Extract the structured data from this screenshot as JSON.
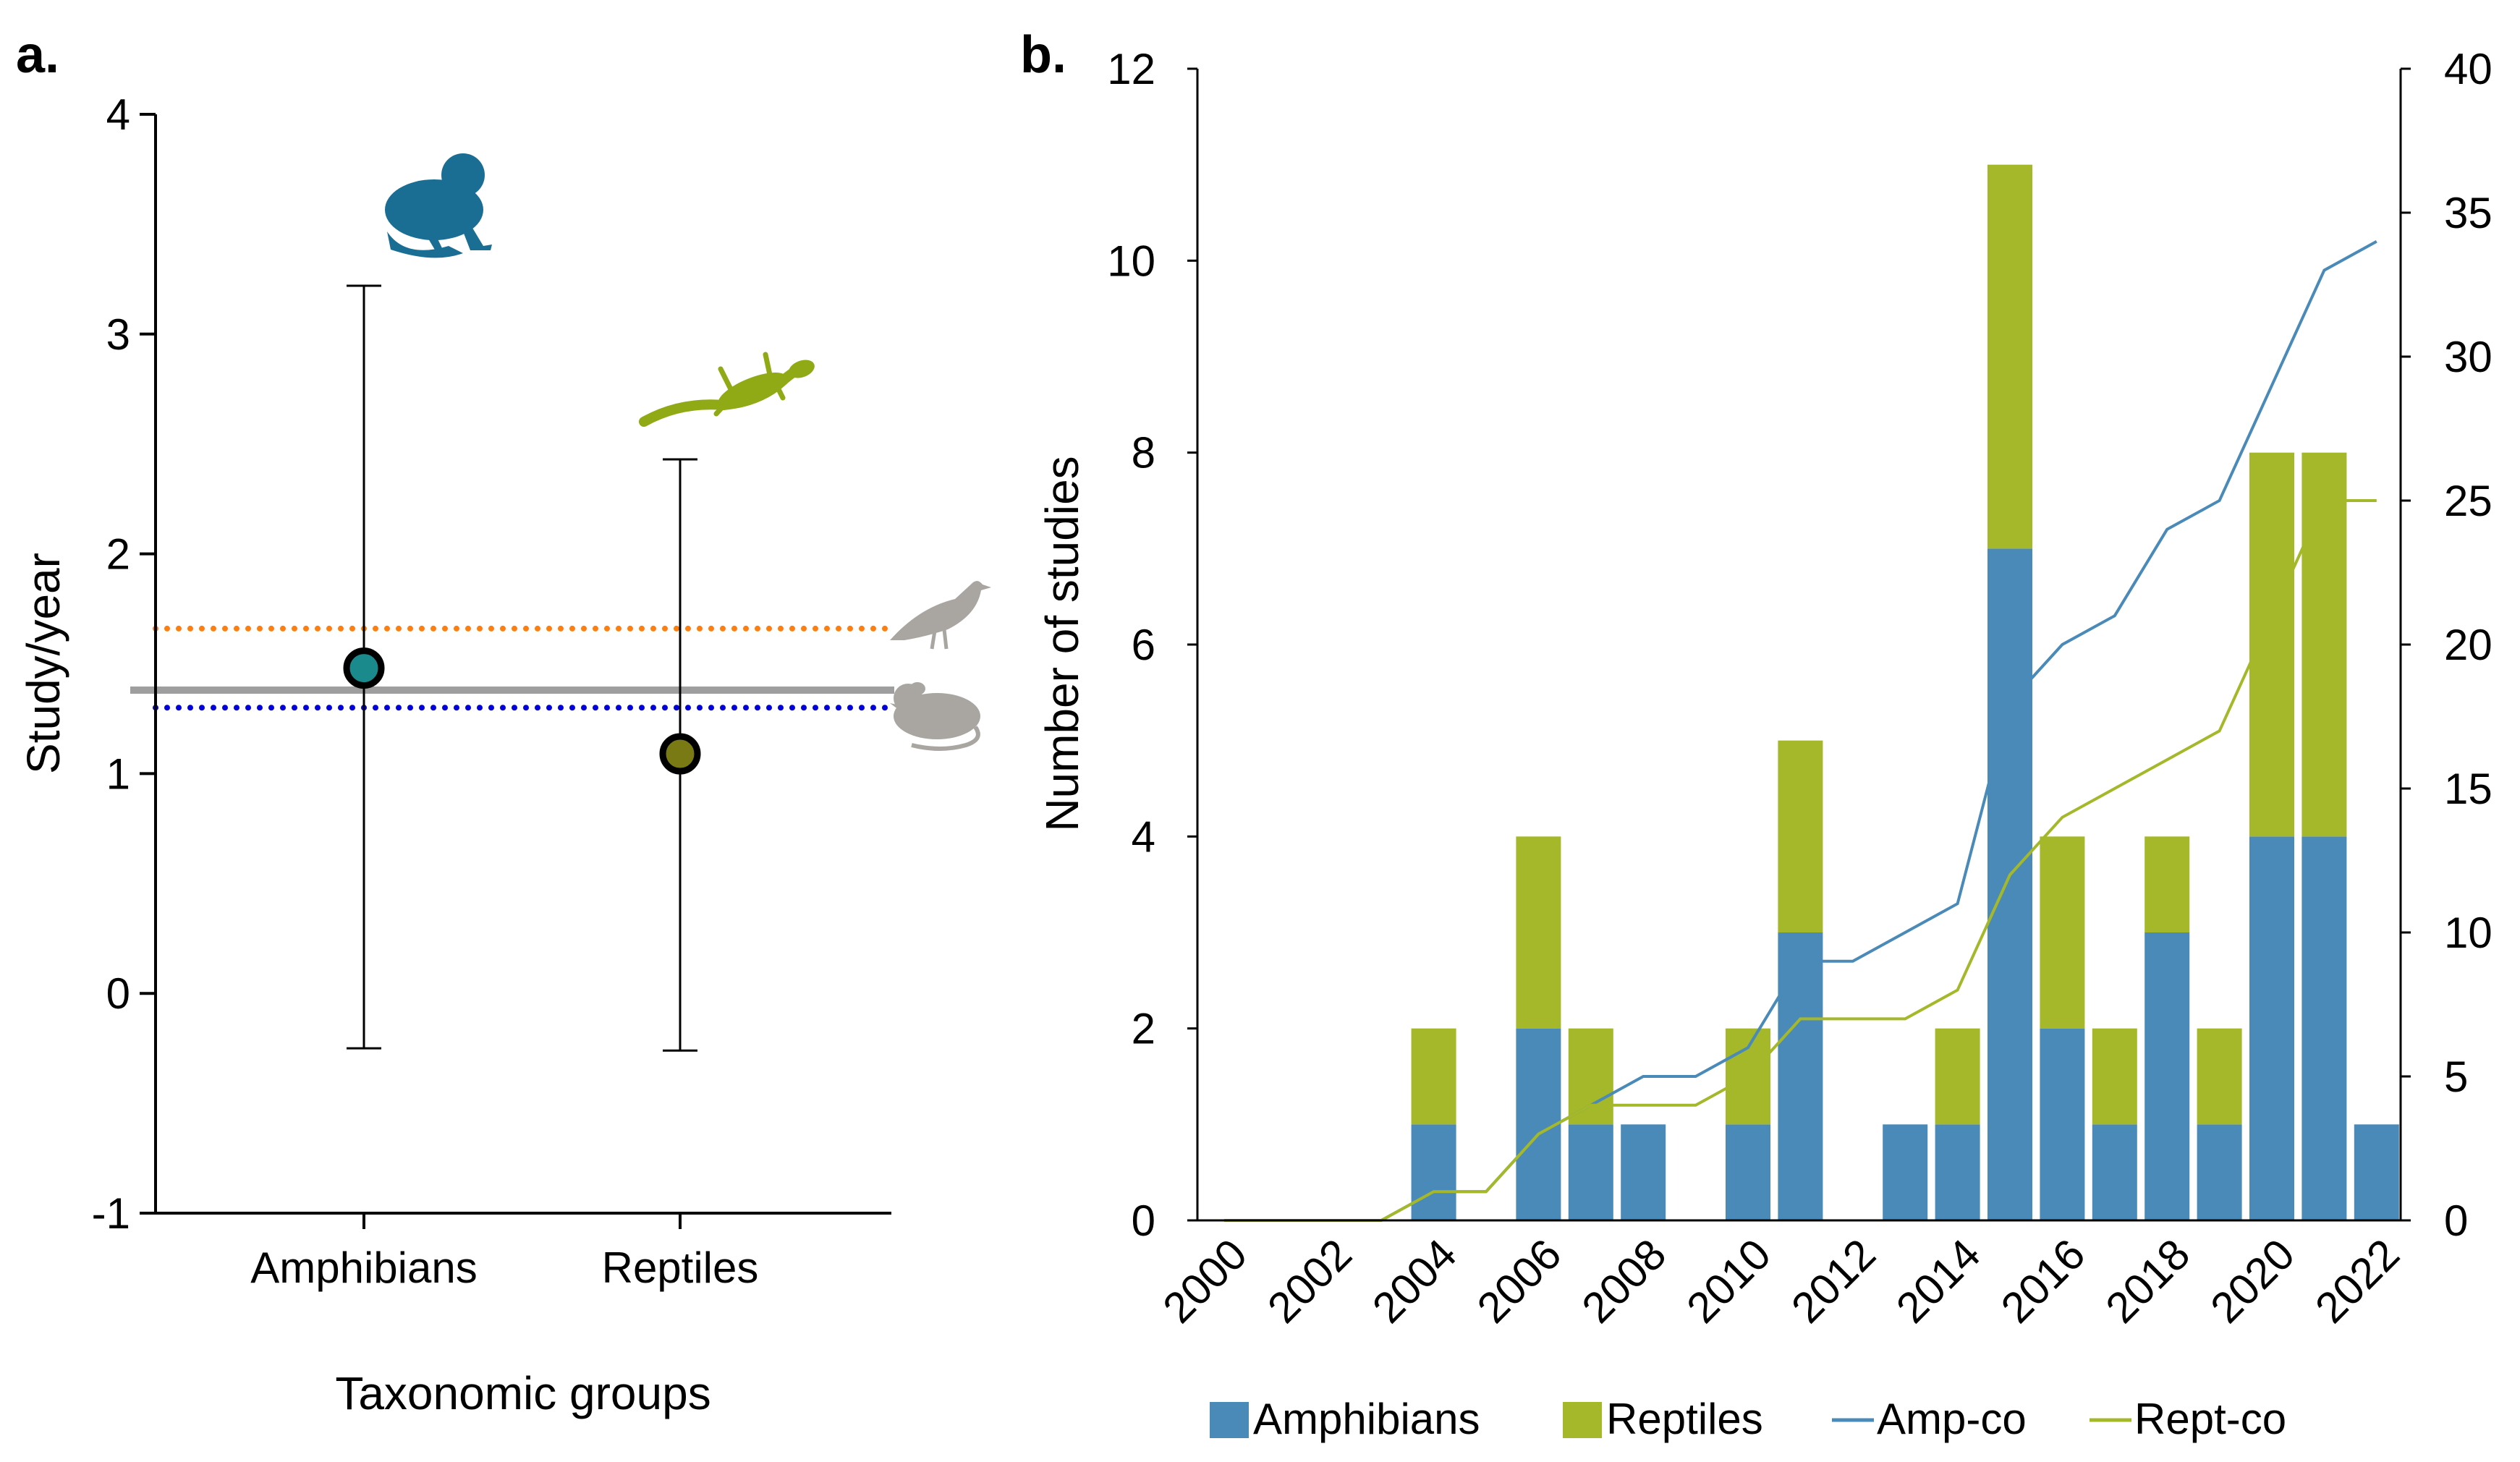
{
  "chart_data": [
    {
      "panel": "a.",
      "type": "scatter",
      "xlabel": "Taxonomic groups",
      "ylabel": "Study/year",
      "ylim": [
        -1,
        4
      ],
      "yticks": [
        "4",
        "3",
        "2",
        "1",
        "0",
        "-1"
      ],
      "categories": [
        "Amphibians",
        "Reptiles"
      ],
      "points": [
        {
          "name": "Amphibians",
          "mean": 1.48,
          "ci_low": -0.25,
          "ci_high": 3.22,
          "color": "#1a8a8c"
        },
        {
          "name": "Reptiles",
          "mean": 1.09,
          "ci_low": -0.26,
          "ci_high": 2.43,
          "color": "#7a7a14"
        }
      ],
      "reference_lines": [
        {
          "name": "birds",
          "value": 1.66,
          "color": "#ff7f0e",
          "style": "dotted",
          "icon": "bird-icon"
        },
        {
          "name": "overall",
          "value": 1.38,
          "color": "#9e9e9e",
          "style": "solid",
          "icon": ""
        },
        {
          "name": "mammals",
          "value": 1.3,
          "color": "#0000dd",
          "style": "dotted",
          "icon": "rodent-icon"
        }
      ],
      "icons": [
        {
          "name": "frog-icon",
          "color": "#1a6e94"
        },
        {
          "name": "lizard-icon",
          "color": "#8faa15"
        }
      ]
    },
    {
      "panel": "b.",
      "type": "bar",
      "stacked": true,
      "ylabel": "Number of studies",
      "ylim": [
        0,
        12
      ],
      "yticks": [
        "0",
        "2",
        "4",
        "6",
        "8",
        "10",
        "12"
      ],
      "y2lim": [
        0,
        40
      ],
      "y2ticks": [
        "0",
        "5",
        "10",
        "15",
        "20",
        "25",
        "30",
        "35",
        "40"
      ],
      "years": [
        2000,
        2001,
        2002,
        2003,
        2004,
        2005,
        2006,
        2007,
        2008,
        2009,
        2010,
        2011,
        2012,
        2013,
        2014,
        2015,
        2016,
        2017,
        2018,
        2019,
        2020,
        2021,
        2022
      ],
      "xticks": [
        "2000",
        "2002",
        "2004",
        "2006",
        "2008",
        "2010",
        "2012",
        "2014",
        "2016",
        "2018",
        "2020",
        "2022"
      ],
      "series": [
        {
          "name": "Amphibians",
          "kind": "bar",
          "color": "#4a8ab8",
          "values": [
            0,
            0,
            0,
            0,
            1,
            0,
            2,
            1,
            1,
            0,
            1,
            3,
            0,
            1,
            1,
            7,
            2,
            1,
            3,
            1,
            4,
            4,
            1
          ]
        },
        {
          "name": "Reptiles",
          "kind": "bar",
          "color": "#a4b82a",
          "values": [
            0,
            0,
            0,
            0,
            1,
            0,
            2,
            1,
            0,
            0,
            1,
            2,
            0,
            0,
            1,
            4,
            2,
            1,
            1,
            1,
            4,
            4,
            0
          ]
        },
        {
          "name": "Amp-co",
          "kind": "line",
          "axis": "right",
          "color": "#4a8ab8",
          "values": [
            0,
            0,
            0,
            0,
            1,
            1,
            3,
            4,
            5,
            5,
            6,
            9,
            9,
            10,
            11,
            18,
            20,
            21,
            24,
            25,
            29,
            33,
            34
          ]
        },
        {
          "name": "Rept-co",
          "kind": "line",
          "axis": "right",
          "color": "#a4b82a",
          "values": [
            0,
            0,
            0,
            0,
            1,
            1,
            3,
            4,
            4,
            4,
            5,
            7,
            7,
            7,
            8,
            12,
            14,
            15,
            16,
            17,
            21,
            25,
            25
          ]
        }
      ],
      "legend": [
        "Amphibians",
        "Reptiles",
        "Amp-co",
        "Rept-co"
      ],
      "legend_position": "bottom"
    }
  ]
}
